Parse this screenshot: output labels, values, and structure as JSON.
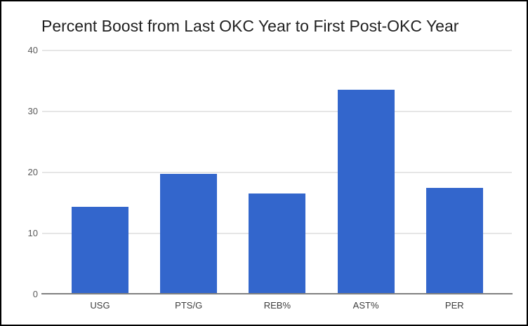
{
  "chart_data": {
    "type": "bar",
    "title": "Percent Boost from Last OKC Year to First Post-OKC Year",
    "categories": [
      "USG",
      "PTS/G",
      "REB%",
      "AST%",
      "PER"
    ],
    "values": [
      14.4,
      19.8,
      16.5,
      33.6,
      17.5
    ],
    "xlabel": "",
    "ylabel": "",
    "ylim": [
      0,
      40
    ],
    "yticks": [
      0,
      10,
      20,
      30,
      40
    ],
    "ytick_labels": [
      "0",
      "10",
      "20",
      "30",
      "40"
    ],
    "grid": true,
    "legend": "none",
    "bar_color": "#3366cc",
    "gridline_color": "#e6e6e6",
    "baseline_color": "#808080",
    "title_color": "#212121",
    "axis_label_color": "#595959"
  }
}
